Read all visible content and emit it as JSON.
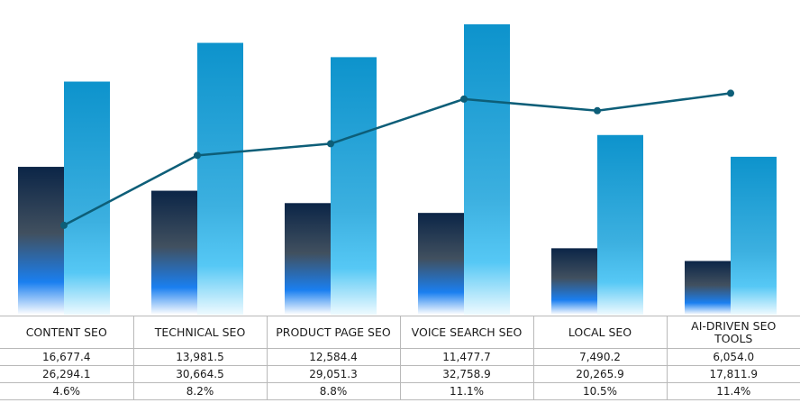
{
  "colors": {
    "dark_bar_top": "#0b2547",
    "dark_bar_mid": "#41505f",
    "dark_bar_blue": "#1a7ff0",
    "light_bar_top": "#0d93cc",
    "light_bar_mid": "#3cb0e0",
    "light_bar_bottom": "#eefaff",
    "line": "#0d5e78",
    "grid_border": "#b9b9b9"
  },
  "chart_data": {
    "type": "bar",
    "categories": [
      "CONTENT SEO",
      "TECHNICAL SEO",
      "PRODUCT PAGE SEO",
      "VOICE SEARCH SEO",
      "LOCAL SEO",
      "AI-DRIVEN SEO TOOLS"
    ],
    "series": [
      {
        "kind": "bar",
        "values": [
          16677.4,
          13981.5,
          12584.4,
          11477.7,
          7490.2,
          6054.0
        ]
      },
      {
        "kind": "bar",
        "values": [
          26294.1,
          30664.5,
          29051.3,
          32758.9,
          20265.9,
          17811.9
        ]
      },
      {
        "kind": "line",
        "values": [
          4.6,
          8.2,
          8.8,
          11.1,
          10.5,
          11.4
        ]
      }
    ],
    "bar_ylim": [
      0,
      35500
    ],
    "line_ylim": [
      0,
      16.2
    ],
    "legend": "none",
    "grid": false
  },
  "table": {
    "rows": [
      [
        "16,677.4",
        "13,981.5",
        "12,584.4",
        "11,477.7",
        "7,490.2",
        "6,054.0"
      ],
      [
        "26,294.1",
        "30,664.5",
        "29,051.3",
        "32,758.9",
        "20,265.9",
        "17,811.9"
      ],
      [
        "4.6%",
        "8.2%",
        "8.8%",
        "11.1%",
        "10.5%",
        "11.4%"
      ]
    ]
  }
}
